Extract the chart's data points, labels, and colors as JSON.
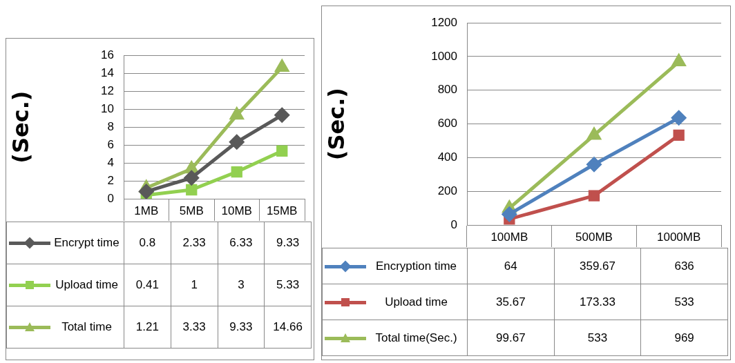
{
  "chart_data": [
    {
      "type": "line",
      "ylabel": "(Sec.)",
      "categories": [
        "1MB",
        "5MB",
        "10MB",
        "15MB"
      ],
      "ylim": [
        0,
        16
      ],
      "yticks": [
        0,
        2,
        4,
        6,
        8,
        10,
        12,
        14,
        16
      ],
      "grid": "y",
      "legend": "bottom",
      "data_labels": true,
      "series": [
        {
          "name": "Encrypt time",
          "color": "#595959",
          "marker": "diamond",
          "values": [
            0.8,
            2.33,
            6.33,
            9.33
          ]
        },
        {
          "name": "Upload time",
          "color": "#92d050",
          "marker": "square",
          "values": [
            0.41,
            1,
            3,
            5.33
          ]
        },
        {
          "name": "Total time",
          "color": "#9bbb59",
          "marker": "triangle",
          "values": [
            1.21,
            3.33,
            9.33,
            14.66
          ]
        }
      ]
    },
    {
      "type": "line",
      "ylabel": "(Sec.)",
      "categories": [
        "100MB",
        "500MB",
        "1000MB"
      ],
      "ylim": [
        0,
        1200
      ],
      "yticks": [
        0,
        200,
        400,
        600,
        800,
        1000,
        1200
      ],
      "grid": "y",
      "legend": "bottom",
      "data_labels": true,
      "series": [
        {
          "name": "Encryption time",
          "color": "#4f81bd",
          "marker": "diamond",
          "values": [
            64,
            359.67,
            636
          ]
        },
        {
          "name": "Upload time",
          "color": "#c0504d",
          "marker": "square",
          "values": [
            35.67,
            173.33,
            533
          ]
        },
        {
          "name": "Total time(Sec.)",
          "color": "#9bbb59",
          "marker": "triangle",
          "values": [
            99.67,
            533,
            969
          ]
        }
      ]
    }
  ]
}
